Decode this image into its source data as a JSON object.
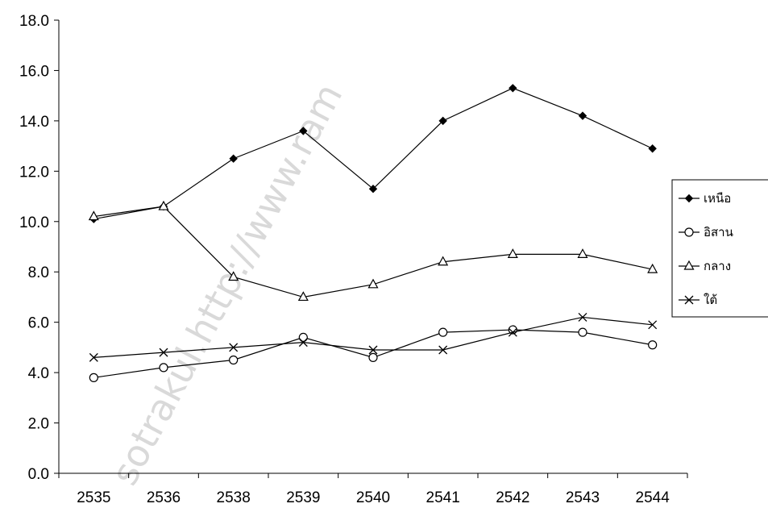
{
  "watermark": "sotrakul.http://www.ram",
  "chart_data": {
    "type": "line",
    "title": "",
    "xlabel": "",
    "ylabel": "",
    "ylim": [
      0,
      18
    ],
    "y_tick_step": 2,
    "y_tick_labels": [
      "0.0",
      "2.0",
      "4.0",
      "6.0",
      "8.0",
      "10.0",
      "12.0",
      "14.0",
      "16.0",
      "18.0"
    ],
    "grid": false,
    "legend_position": "right",
    "categories": [
      "2535",
      "2536",
      "2538",
      "2539",
      "2540",
      "2541",
      "2542",
      "2543",
      "2544"
    ],
    "series": [
      {
        "name": "เหนือ",
        "marker": "diamond-filled",
        "color": "#000000",
        "values": [
          10.1,
          10.6,
          12.5,
          13.6,
          11.3,
          14.0,
          15.3,
          14.2,
          12.9
        ]
      },
      {
        "name": "อิสาน",
        "marker": "circle-open",
        "color": "#000000",
        "values": [
          3.8,
          4.2,
          4.5,
          5.4,
          4.6,
          5.6,
          5.7,
          5.6,
          5.1
        ]
      },
      {
        "name": "กลาง",
        "marker": "triangle-open",
        "color": "#000000",
        "values": [
          10.2,
          10.6,
          7.8,
          7.0,
          7.5,
          8.4,
          8.7,
          8.7,
          8.1
        ]
      },
      {
        "name": "ใต้",
        "marker": "x",
        "color": "#000000",
        "values": [
          4.6,
          4.8,
          5.0,
          5.2,
          4.9,
          4.9,
          5.6,
          6.2,
          5.9
        ]
      }
    ]
  }
}
